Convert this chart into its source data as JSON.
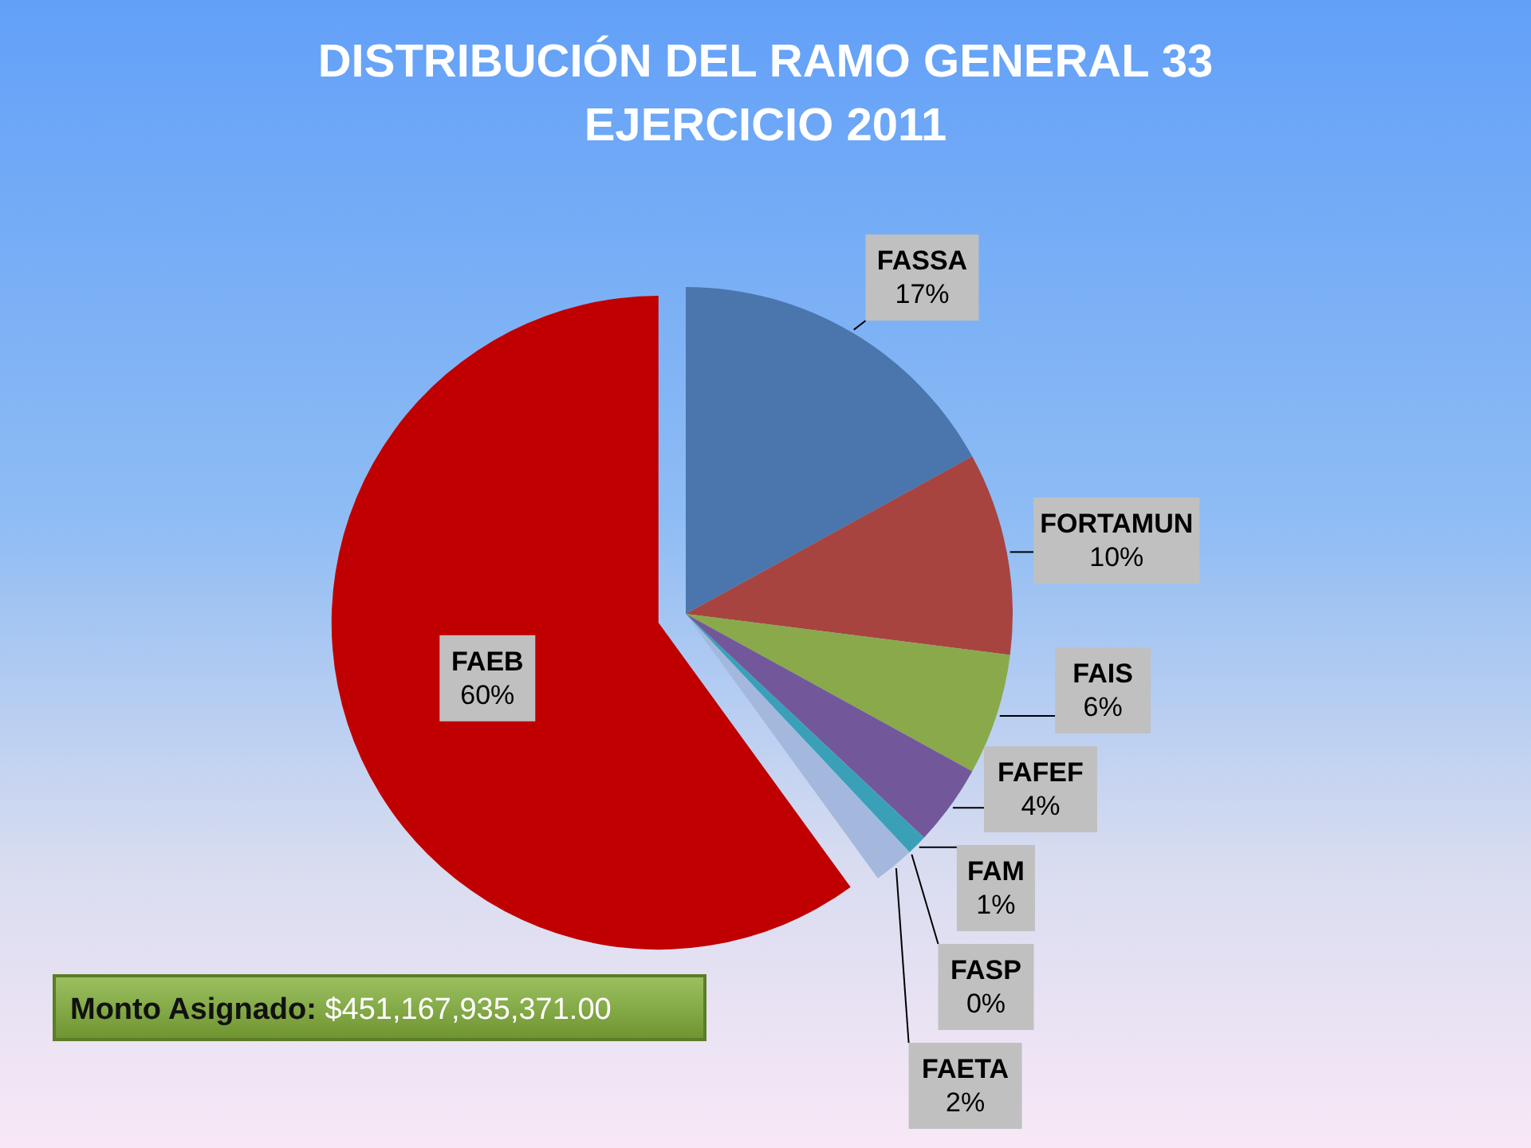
{
  "chart_data": {
    "type": "pie",
    "title": "DISTRIBUCIÓN DEL RAMO GENERAL 33",
    "subtitle": "EJERCICIO 2011",
    "categories": [
      "FASSA",
      "FORTAMUN",
      "FAIS",
      "FAFEF",
      "FAM",
      "FASP",
      "FAETA",
      "FAEB"
    ],
    "values": [
      17,
      10,
      6,
      4,
      1,
      0,
      2,
      60
    ],
    "colors": [
      "#4a76ad",
      "#a84440",
      "#8aa94b",
      "#72589b",
      "#3aa0b8",
      "#c0642e",
      "#a3b8dc",
      "#c00000"
    ],
    "value_labels": [
      "17%",
      "10%",
      "6%",
      "4%",
      "1%",
      "0%",
      "2%",
      "60%"
    ],
    "annotations": [
      "Monto Asignado: $451,167,935,371.00"
    ]
  }
}
